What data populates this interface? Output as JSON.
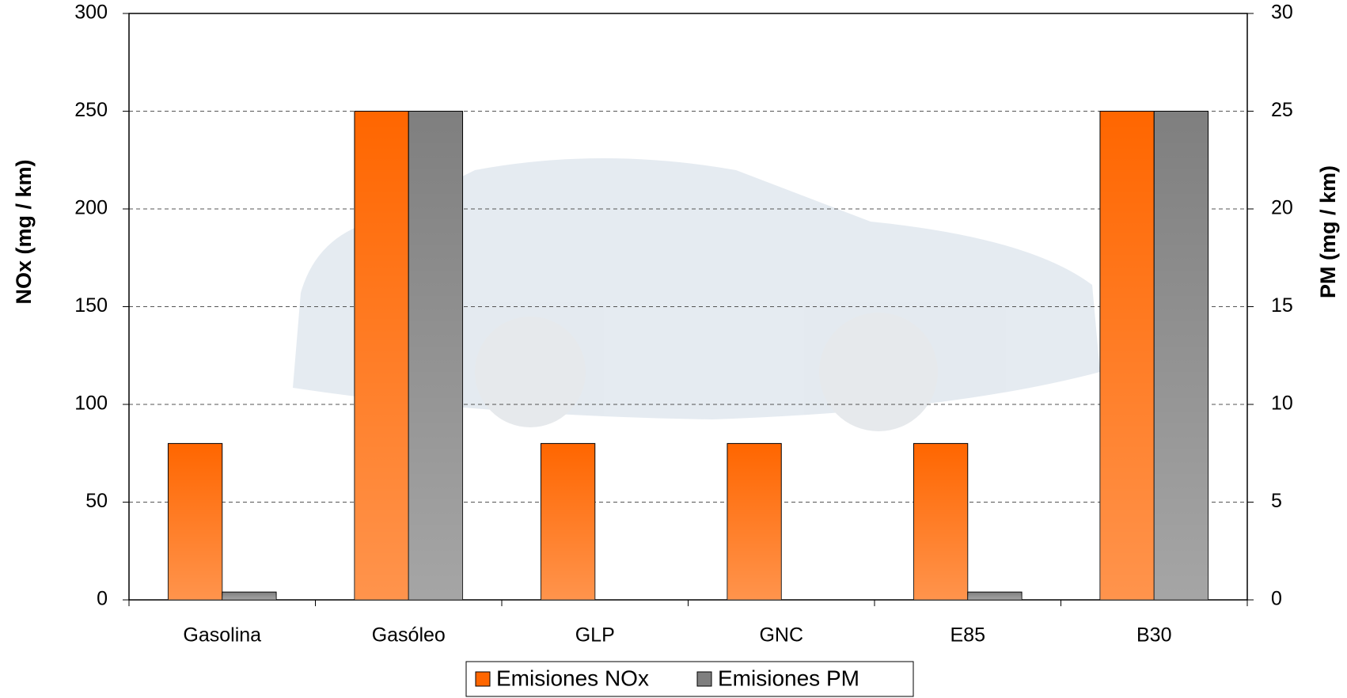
{
  "chart_data": {
    "type": "bar",
    "categories": [
      "Gasolina",
      "Gasóleo",
      "GLP",
      "GNC",
      "E85",
      "B30"
    ],
    "series": [
      {
        "name": "Emisiones NOx",
        "color": "#ff6600",
        "values": [
          80,
          250,
          80,
          80,
          80,
          250
        ]
      },
      {
        "name": "Emisiones PM",
        "color": "#7f7f7f",
        "values": [
          0.4,
          25,
          0,
          0,
          0.4,
          25
        ],
        "axis": "y2"
      }
    ],
    "ylabel": "NOx (mg / km)",
    "y2label": "PM (mg / km)",
    "ylim": [
      0,
      300
    ],
    "yticks": [
      0,
      50,
      100,
      150,
      200,
      250,
      300
    ],
    "y2lim": [
      0,
      30
    ],
    "y2ticks": [
      0,
      5,
      10,
      15,
      20,
      25,
      30
    ],
    "grid": true,
    "legend": "bottom"
  }
}
